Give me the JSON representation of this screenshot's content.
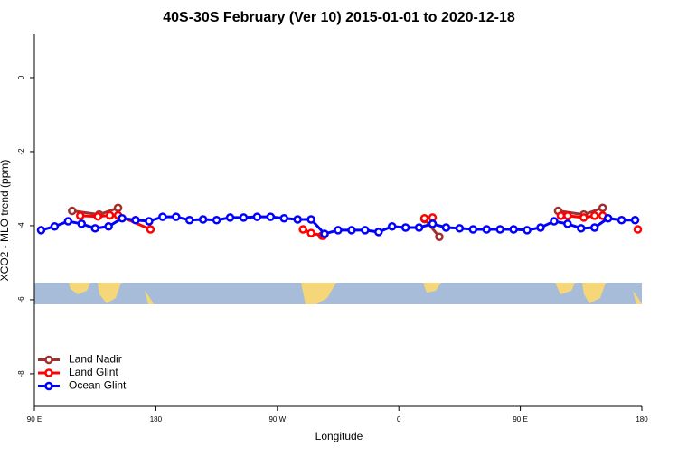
{
  "chart_data": {
    "type": "line",
    "title": "40S-30S February (Ver 10)   2015-01-01 to 2020-12-18",
    "x_label": "Longitude",
    "y_label": "XCO2 - MLO trend (ppm)",
    "xlim": [
      90,
      540
    ],
    "xticks": [
      {
        "value": 90,
        "label": "90 E"
      },
      180,
      {
        "value": 270,
        "label": "90 W"
      },
      {
        "value": 360,
        "label": "0"
      },
      {
        "value": 450,
        "label": "90 E"
      },
      180.0001
    ],
    "ylim": [
      -8.88,
      1.17
    ],
    "yticks": [
      0,
      -2,
      -4,
      -6,
      -8
    ],
    "legend": "bottomleft",
    "series": [
      {
        "name": "Land Nadir",
        "color": "#a03030",
        "x": [
          118,
          138,
          152,
          null,
          303,
          null,
          379,
          390,
          null,
          478,
          497,
          511
        ],
        "values": [
          -3.6,
          -3.7,
          -3.52,
          null,
          -4.27,
          null,
          -3.82,
          -4.3,
          null,
          -3.6,
          -3.7,
          -3.52
        ]
      },
      {
        "name": "Land Glint",
        "color": "#ff0000",
        "x": [
          124,
          137,
          146,
          152,
          176,
          null,
          289,
          295,
          304,
          null,
          379,
          385,
          null,
          480,
          485,
          497,
          505,
          511,
          null,
          537
        ],
        "values": [
          -3.73,
          -3.75,
          -3.72,
          -3.72,
          -4.1,
          null,
          -4.1,
          -4.2,
          -4.27,
          null,
          -3.8,
          -3.78,
          null,
          -3.73,
          -3.73,
          -3.78,
          -3.73,
          -3.73,
          null,
          -4.1
        ]
      },
      {
        "name": "Ocean Glint",
        "color": "#0000ff",
        "x": [
          95,
          105,
          115,
          125,
          135,
          145,
          155,
          165,
          175,
          185,
          195,
          205,
          215,
          225,
          235,
          245,
          255,
          265,
          275,
          285,
          295,
          305,
          315,
          325,
          335,
          345,
          355,
          365,
          375,
          385,
          395,
          405,
          415,
          425,
          435,
          445,
          455,
          465,
          475,
          485,
          495,
          505,
          515,
          525,
          535
        ],
        "values": [
          -4.12,
          -4.02,
          -3.88,
          -3.95,
          -4.07,
          -4.02,
          -3.8,
          -3.85,
          -3.88,
          -3.76,
          -3.76,
          -3.85,
          -3.83,
          -3.85,
          -3.78,
          -3.78,
          -3.76,
          -3.76,
          -3.8,
          -3.83,
          -3.83,
          -4.22,
          -4.12,
          -4.12,
          -4.12,
          -4.17,
          -4.02,
          -4.05,
          -4.05,
          -3.95,
          -4.05,
          -4.07,
          -4.1,
          -4.1,
          -4.1,
          -4.1,
          -4.12,
          -4.05,
          -3.88,
          -3.95,
          -4.07,
          -4.05,
          -3.8,
          -3.85,
          -3.85
        ]
      }
    ]
  }
}
